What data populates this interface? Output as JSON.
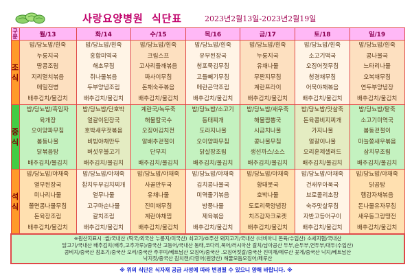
{
  "header": {
    "title_part1": "사랑요양병원",
    "title_part2": "식단표",
    "period": "2023년2월13일-2023년2월19일",
    "logo_icon": "cabbage-icon"
  },
  "table": {
    "gubun_label": "구분",
    "days": [
      "월/13",
      "화/14",
      "수/15",
      "목/16",
      "금/17",
      "토/18",
      "일/19"
    ],
    "meals": [
      {
        "label": "조식",
        "menus": [
          [
            "밥/당뇨밥/흰죽",
            "누룽지국",
            "땅콩조림",
            "지리멸치볶음",
            "메밀전병",
            "배추김치/물김치"
          ],
          [
            "밥/당뇨밥/흰죽",
            "홍합미역국",
            "해초무침",
            "취나물볶음",
            "두부양념조림",
            "배추김치/물김치"
          ],
          [
            "밥/당뇨밥/흰죽",
            "크림스프",
            "고사리들깨볶음",
            "짜사이무침",
            "돈채숙주볶음",
            "배추김치/물김치"
          ],
          [
            "밥/당뇨밥/흰죽",
            "유부된장국",
            "청포묵김무침",
            "고들빼기무침",
            "메란곤약조림",
            "배추김치/물김치"
          ],
          [
            "밥/당뇨밥/흰죽",
            "누룽지국",
            "유채나물",
            "무짠지무침",
            "계란프라이",
            "배추김치/물김치"
          ],
          [
            "밥/당뇨밥/흰죽",
            "소고기떡국",
            "오징어젓무침",
            "청경채무침",
            "어묵야채볶음",
            "배추김치/물김치"
          ],
          [
            "밥/당뇨밥/흰죽",
            "콩나물국",
            "느타리나물",
            "오복채무침",
            "연두부양념장",
            "배추김치/물김치"
          ]
        ]
      },
      {
        "label": "중식",
        "menus": [
          [
            "밥/당뇨밥/흑임자",
            "육개장",
            "오이양파무침",
            "봄동나물",
            "닭볶음탕",
            "배추김치/물김치"
          ],
          [
            "밥/당뇨밥/단호박",
            "얼갈이된장국",
            "호박새우젓볶음",
            "비빔야채만두",
            "버섯우불고기",
            "배추김치/물김치"
          ],
          [
            "계란국/녹두죽",
            "해물칼국수",
            "오징어김치전",
            "알배추겉절이",
            "단무지",
            "배추김치/물김치"
          ],
          [
            "밥/당뇨밥/소고기",
            "동태찌개",
            "도라지나물",
            "오이양파무침",
            "닭살장조림",
            "배추김치/물김치"
          ],
          [
            "밥/당뇨밥/새우죽",
            "해물짬뽕국",
            "시금치나물",
            "콩나물무침",
            "생선까스/소스",
            "배추김치/물김치"
          ],
          [
            "밥/당뇨밥/맛살죽",
            "돈육콩비지찌개",
            "가지나물",
            "얼갈이나물",
            "오리훈제샐러드",
            "배추김치/물김치"
          ],
          [
            "밥/당뇨밥/팥죽",
            "소고기미역국",
            "봄동겉절이",
            "마늘쫑새우볶음",
            "삼치무조림",
            "배추김치/물김치"
          ]
        ]
      },
      {
        "label": "석식",
        "menus": [
          [
            "밥/당뇨밥/야채죽",
            "열무된장국",
            "미나리나물",
            "쫄면콩나물무침",
            "돈육장조림",
            "배추김치/물김치"
          ],
          [
            "밥/당뇨밥/야채죽",
            "참치두부김치찌개",
            "열무나물",
            "고구마순나물",
            "갈치조림",
            "배추김치/물김치"
          ],
          [
            "밥/당뇨밥/야채죽",
            "사골만두국",
            "유채나물",
            "진미채무침",
            "계란야채찜",
            "배추김치/물김치"
          ],
          [
            "밥/당뇨밥/야채죽",
            "김치콩나물국",
            "미역줄기볶음",
            "방풍나물",
            "제육볶음",
            "배추김치/물김치"
          ],
          [
            "밥/당뇨밥/야채죽",
            "황태뭇국",
            "호박나물",
            "도토리묵양념장",
            "치즈감자크로켓",
            "배추김치/물김치"
          ],
          [
            "밥/당뇨밥/야채죽",
            "건새우아욱국",
            "브로콜리초장",
            "숙주맛살무침",
            "자반고등어구이",
            "배추김치/물김치"
          ],
          [
            "밥/당뇨밥/야채죽",
            "닭곰탕",
            "햄감자채볶음",
            "돈나물유자무침",
            "새우동그랑땡전",
            "배추김치/물김치"
          ]
        ]
      }
    ],
    "origin_lines": [
      "※원산지표시 :쌀/국내산 (떡국/외국산 누룽지/미국산) 쇠고기/호주산 돼지고기/국내산 (너비아니 돈육/수입산) 소세지햄/국내산",
      "닭고기/국내산 배추김치(배추,고추가루)/중국산 고등어/국내산 동태,코다리,북어/러시아산 갈치/남아공산 두부,순두부,연두부/대두(수입산)",
      "콩비지/중국산 참조기/중국산 오리/중국산 주꾸미/베트남산 오징어/중국산 .오징어젓갈/중국산 진미채/페루산 꽃게/중국산 낙지/베트남산",
      "낙지젓/중국산 참치캔/다랑어(원양산) 해물모듬오징어/페루산"
    ]
  },
  "note": "※ 위의 식단은 식자재 공급 사정에 따라 변경될 수 있으니 양해 바랍니다. ※",
  "colors": {
    "header_bg": "#ffb8f6",
    "border": "#e04848",
    "breakfast_label": "#ff9a2a",
    "lunch_label": "#44cc44",
    "dinner_label": "#ff9a2a",
    "note_text": "#1a2ad0",
    "title_text": "#c0006a"
  }
}
